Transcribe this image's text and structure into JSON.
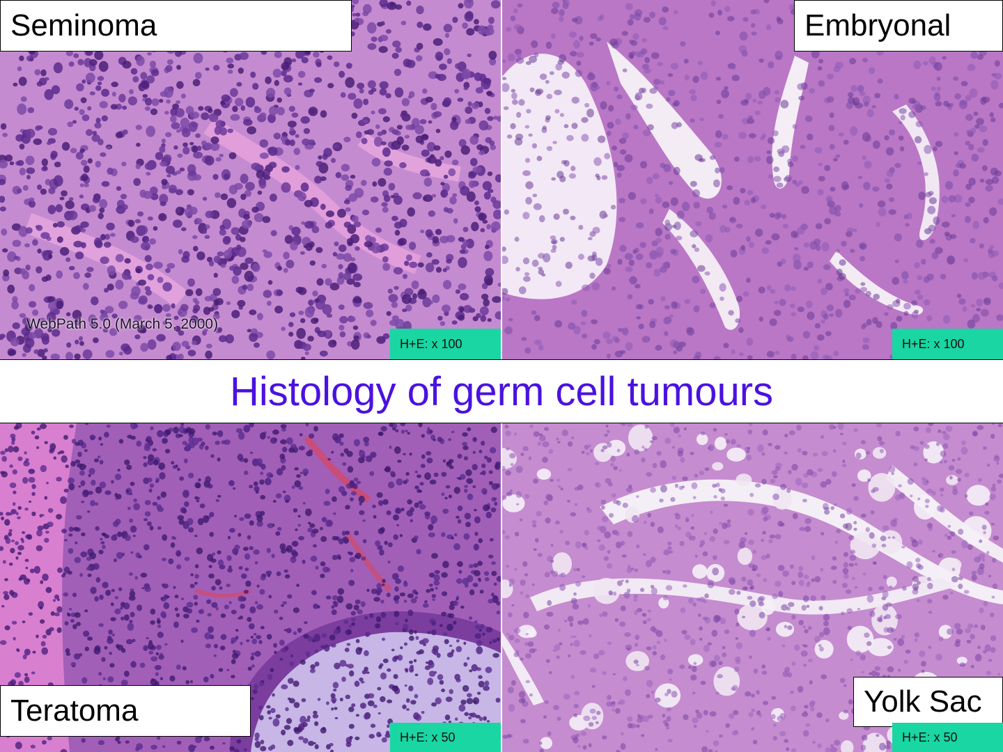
{
  "title": "Histology of germ cell tumours",
  "colors": {
    "title": "#4a12e0",
    "magnification_badge": "#19d6a3",
    "stain_background": "#c77fc9",
    "nuclei": "#5a2a8c"
  },
  "panels": [
    {
      "label": "Seminoma",
      "magnification": "H+E: x 100",
      "credit": "WebPath 5.0 (March 5, 2000)"
    },
    {
      "label": "Embryonal",
      "magnification": "H+E: x 100"
    },
    {
      "label": "Teratoma",
      "magnification": "H+E: x 50"
    },
    {
      "label": "Yolk Sac",
      "magnification": "H+E: x 50"
    }
  ]
}
